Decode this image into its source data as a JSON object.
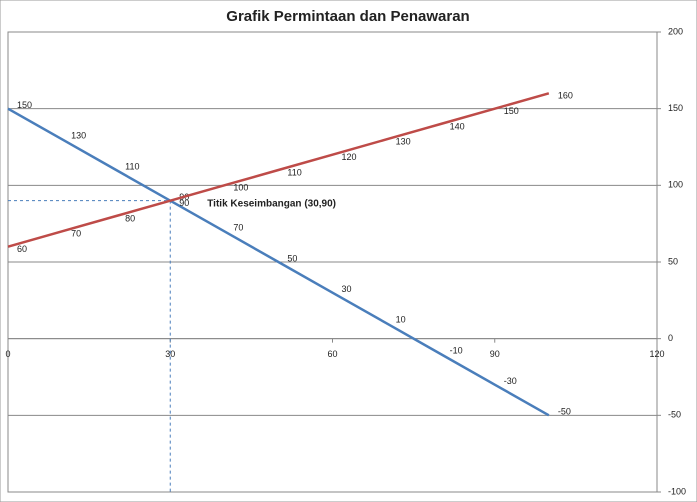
{
  "chart_data": {
    "type": "line",
    "title": "Grafik Permintaan dan Penawaran",
    "x": [
      0,
      10,
      20,
      30,
      40,
      50,
      60,
      70,
      80,
      90,
      100
    ],
    "series": [
      {
        "color": "#4a7ebb",
        "values": [
          150,
          130,
          110,
          90,
          70,
          50,
          30,
          10,
          -10,
          -30,
          -50
        ]
      },
      {
        "color": "#be4b48",
        "values": [
          60,
          70,
          80,
          90,
          100,
          110,
          120,
          130,
          140,
          150,
          160
        ]
      }
    ],
    "xlim": [
      0,
      120
    ],
    "xticks": [
      0,
      30,
      60,
      90,
      120
    ],
    "ylim": [
      -100,
      200
    ],
    "yticks": [
      -100,
      -50,
      0,
      50,
      100,
      150,
      200
    ],
    "grid": true,
    "equilibrium": {
      "x": 30,
      "y": 90,
      "label": "Titik Keseimbangan (30,90)"
    }
  }
}
